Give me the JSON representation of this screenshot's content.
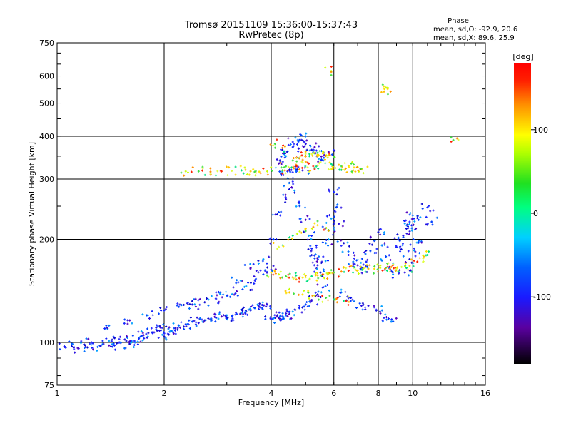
{
  "chart_data": {
    "type": "scatter",
    "title": "Tromsø 20151109 15:36:00-15:37:43",
    "subtitle": "RwPretec (8p)",
    "xlabel": "Frequency [MHz]",
    "ylabel": "Stationary phase Virtual Height [km]",
    "xscale": "log",
    "yscale": "log",
    "xlim": [
      1,
      16
    ],
    "ylim": [
      75,
      750
    ],
    "xticks": [
      1,
      2,
      4,
      6,
      8,
      10,
      16
    ],
    "xtick_labels": [
      "1",
      "2",
      "4",
      "6",
      "8",
      "10",
      "16"
    ],
    "yticks": [
      75,
      100,
      200,
      300,
      400,
      500,
      600,
      750
    ],
    "ytick_labels": [
      "75",
      "100",
      "200",
      "300",
      "400",
      "500",
      "600",
      "750"
    ],
    "grid": true,
    "phase_header": "Phase",
    "phase_stats": [
      "mean, sd,O: -92.9, 20.6",
      "mean, sd,X:  89.6, 25.9"
    ],
    "colorbar": {
      "label": "[deg]",
      "range": [
        -180,
        180
      ],
      "ticks": [
        100,
        0,
        -100
      ],
      "tick_labels": [
        "100",
        "0",
        "-100"
      ]
    },
    "series": [
      {
        "mode": "O",
        "points": [
          [
            1.05,
            97
          ],
          [
            1.1,
            99
          ],
          [
            1.15,
            96
          ],
          [
            1.2,
            98
          ],
          [
            1.25,
            100
          ],
          [
            1.3,
            97
          ],
          [
            1.35,
            99
          ],
          [
            1.4,
            101
          ],
          [
            1.45,
            98
          ],
          [
            1.5,
            100
          ],
          [
            1.55,
            102
          ],
          [
            1.6,
            99
          ],
          [
            1.65,
            101
          ],
          [
            1.7,
            103
          ],
          [
            1.75,
            105
          ],
          [
            1.8,
            104
          ],
          [
            1.85,
            107
          ],
          [
            1.9,
            109
          ],
          [
            1.95,
            111
          ],
          [
            2.0,
            104
          ],
          [
            2.05,
            106
          ],
          [
            2.1,
            108
          ],
          [
            2.15,
            110
          ],
          [
            2.2,
            112
          ],
          [
            2.3,
            113
          ],
          [
            2.4,
            115
          ],
          [
            2.5,
            114
          ],
          [
            2.6,
            116
          ],
          [
            2.7,
            117
          ],
          [
            2.8,
            118
          ],
          [
            2.9,
            119
          ],
          [
            3.0,
            120
          ],
          [
            3.1,
            119
          ],
          [
            3.2,
            121
          ],
          [
            3.3,
            122
          ],
          [
            3.4,
            123
          ],
          [
            3.5,
            124
          ],
          [
            3.6,
            126
          ],
          [
            3.7,
            127
          ],
          [
            3.8,
            128
          ],
          [
            3.9,
            129
          ],
          [
            4.0,
            117
          ],
          [
            4.1,
            118
          ],
          [
            4.2,
            118
          ],
          [
            4.3,
            119
          ],
          [
            4.4,
            120
          ],
          [
            4.5,
            121
          ],
          [
            4.6,
            123
          ],
          [
            4.8,
            126
          ],
          [
            5.0,
            129
          ],
          [
            5.2,
            133
          ],
          [
            5.4,
            138
          ],
          [
            5.6,
            145
          ],
          [
            1.4,
            112
          ],
          [
            1.6,
            116
          ],
          [
            1.8,
            120
          ],
          [
            2.0,
            124
          ],
          [
            2.2,
            127
          ],
          [
            2.4,
            129
          ],
          [
            2.6,
            131
          ],
          [
            2.8,
            134
          ],
          [
            3.0,
            137
          ],
          [
            3.2,
            141
          ],
          [
            3.4,
            146
          ],
          [
            3.6,
            152
          ],
          [
            3.8,
            158
          ],
          [
            4.0,
            163
          ],
          [
            2.4,
            132
          ],
          [
            2.8,
            140
          ],
          [
            3.2,
            152
          ],
          [
            3.5,
            165
          ],
          [
            3.8,
            175
          ],
          [
            4.05,
            200
          ],
          [
            4.2,
            240
          ],
          [
            4.4,
            262
          ],
          [
            4.5,
            280
          ],
          [
            4.6,
            295
          ],
          [
            4.8,
            255
          ],
          [
            5.0,
            228
          ],
          [
            5.1,
            205
          ],
          [
            5.2,
            188
          ],
          [
            5.3,
            176
          ],
          [
            5.4,
            168
          ],
          [
            5.5,
            160
          ],
          [
            5.6,
            178
          ],
          [
            5.7,
            195
          ],
          [
            5.8,
            212
          ],
          [
            5.9,
            230
          ],
          [
            6.0,
            275
          ],
          [
            6.1,
            248
          ],
          [
            6.2,
            222
          ],
          [
            6.4,
            195
          ],
          [
            6.6,
            180
          ],
          [
            6.8,
            172
          ],
          [
            7.0,
            168
          ],
          [
            7.2,
            163
          ],
          [
            7.4,
            172
          ],
          [
            7.6,
            185
          ],
          [
            7.8,
            198
          ],
          [
            8.0,
            210
          ],
          [
            8.2,
            192
          ],
          [
            8.4,
            178
          ],
          [
            8.6,
            166
          ],
          [
            8.8,
            158
          ],
          [
            9.0,
            190
          ],
          [
            9.2,
            198
          ],
          [
            9.4,
            205
          ],
          [
            9.6,
            215
          ],
          [
            9.8,
            225
          ],
          [
            10.0,
            235
          ],
          [
            10.2,
            215
          ],
          [
            10.5,
            232
          ],
          [
            11.0,
            248
          ],
          [
            11.3,
            225
          ],
          [
            9.5,
            160
          ],
          [
            9.8,
            175
          ],
          [
            10.1,
            188
          ],
          [
            10.4,
            198
          ],
          [
            4.2,
            333
          ],
          [
            4.4,
            350
          ],
          [
            4.6,
            372
          ],
          [
            4.8,
            390
          ],
          [
            5.0,
            380
          ],
          [
            5.2,
            365
          ],
          [
            5.4,
            352
          ],
          [
            5.6,
            340
          ],
          [
            5.8,
            360
          ],
          [
            4.3,
            315
          ],
          [
            4.5,
            318
          ],
          [
            4.7,
            320
          ],
          [
            4.9,
            318
          ],
          [
            4.3,
            365
          ],
          [
            4.6,
            385
          ],
          [
            5.0,
            400
          ],
          [
            5.3,
            372
          ],
          [
            6.3,
            140
          ],
          [
            6.7,
            135
          ],
          [
            7.1,
            130
          ],
          [
            7.5,
            128
          ],
          [
            7.9,
            124
          ],
          [
            8.3,
            118
          ],
          [
            8.7,
            115
          ]
        ]
      },
      {
        "mode": "X",
        "points": [
          [
            4.0,
            160
          ],
          [
            4.2,
            158
          ],
          [
            4.4,
            156
          ],
          [
            4.6,
            155
          ],
          [
            4.8,
            154
          ],
          [
            5.0,
            155
          ],
          [
            5.2,
            156
          ],
          [
            5.4,
            157
          ],
          [
            5.6,
            158
          ],
          [
            5.8,
            159
          ],
          [
            6.0,
            160
          ],
          [
            6.3,
            161
          ],
          [
            6.6,
            162
          ],
          [
            6.9,
            163
          ],
          [
            7.2,
            163
          ],
          [
            7.5,
            164
          ],
          [
            7.8,
            164
          ],
          [
            8.1,
            165
          ],
          [
            8.4,
            165
          ],
          [
            8.7,
            166
          ],
          [
            9.0,
            165
          ],
          [
            9.3,
            166
          ],
          [
            9.6,
            165
          ],
          [
            4.5,
            140
          ],
          [
            4.9,
            138
          ],
          [
            5.3,
            137
          ],
          [
            5.7,
            135
          ],
          [
            6.1,
            134
          ],
          [
            6.5,
            132
          ],
          [
            4.2,
            190
          ],
          [
            4.6,
            205
          ],
          [
            5.0,
            215
          ],
          [
            5.4,
            220
          ],
          [
            5.8,
            212
          ],
          [
            4.6,
            340
          ],
          [
            4.8,
            345
          ],
          [
            5.0,
            350
          ],
          [
            5.2,
            355
          ],
          [
            5.4,
            358
          ],
          [
            5.6,
            360
          ],
          [
            5.8,
            352
          ],
          [
            6.0,
            348
          ],
          [
            4.4,
            327
          ],
          [
            4.7,
            330
          ],
          [
            5.1,
            333
          ],
          [
            5.5,
            336
          ],
          [
            5.9,
            332
          ],
          [
            6.2,
            330
          ],
          [
            6.6,
            328
          ],
          [
            7.0,
            325
          ],
          [
            4.3,
            318
          ],
          [
            4.8,
            320
          ],
          [
            5.3,
            321
          ],
          [
            5.8,
            320
          ],
          [
            6.3,
            319
          ],
          [
            6.8,
            318
          ],
          [
            7.2,
            320
          ],
          [
            2.3,
            316
          ],
          [
            2.5,
            316
          ],
          [
            2.7,
            315
          ],
          [
            2.9,
            316
          ],
          [
            3.1,
            317
          ],
          [
            3.3,
            318
          ],
          [
            3.5,
            316
          ],
          [
            3.7,
            315
          ],
          [
            3.9,
            316
          ],
          [
            4.1,
            380
          ],
          [
            4.3,
            370
          ],
          [
            10.3,
            172
          ],
          [
            10.7,
            176
          ],
          [
            11.0,
            180
          ],
          [
            8.3,
            540
          ],
          [
            8.5,
            550
          ],
          [
            5.9,
            620
          ],
          [
            13.0,
            390
          ]
        ]
      }
    ]
  }
}
